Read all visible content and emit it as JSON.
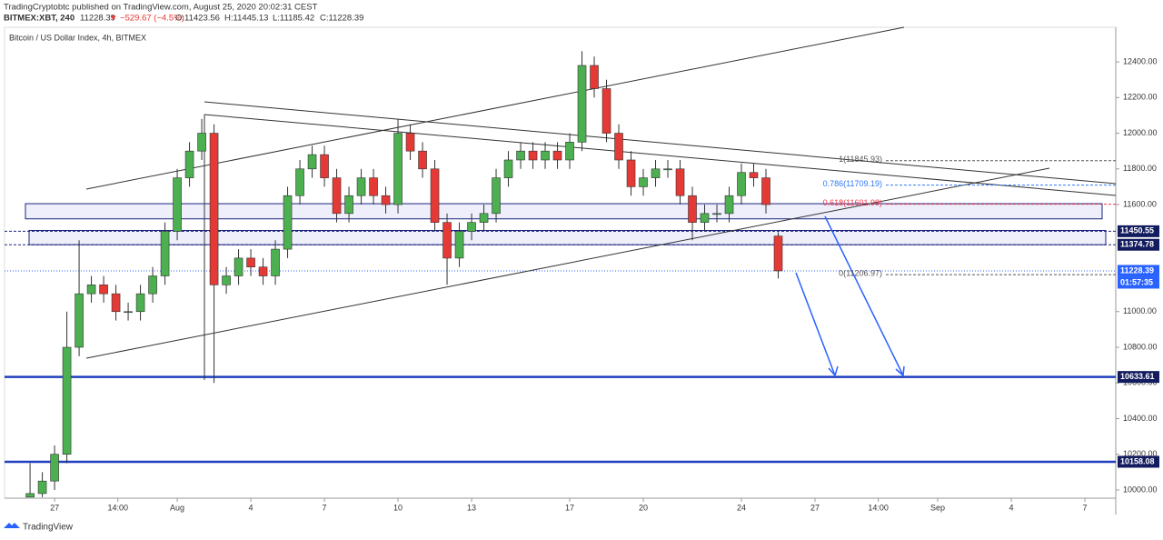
{
  "header": {
    "published": "TradingCryptobtc published on TradingView.com, August 25, 2020 20:02:31 CEST",
    "symbol": "BITMEX:XBT, 240",
    "last": "11228.39",
    "change": "▼ −529.67 (−4.5%)",
    "ohlc": [
      "O:11423.56",
      "H:11445.13",
      "L:11185.42",
      "C:11228.39"
    ]
  },
  "footer": "TradingView",
  "chart_data": {
    "type": "candlestick",
    "title": "Bitcoin / US Dollar Index, 4h, BITMEX",
    "up_color": "#4caf50",
    "down_color": "#e53935",
    "x": [
      -1,
      -0.5,
      0,
      0.5,
      1,
      1.5,
      2,
      2.5,
      3,
      3.5,
      4,
      4.5,
      5,
      5.5,
      6,
      6.5,
      7,
      7.5,
      8,
      8.5,
      9,
      9.5,
      10,
      10.5,
      11,
      11.5,
      12,
      12.5,
      13,
      13.5,
      14,
      14.5,
      15,
      15.5,
      16,
      16.5,
      17,
      17.5,
      18,
      18.5,
      19,
      19.5,
      20,
      20.5,
      21,
      21.5,
      22,
      22.5,
      23,
      23.5,
      24,
      24.5,
      25,
      25.5,
      26,
      26.5,
      27,
      27.5,
      28,
      28.5,
      29,
      29.5
    ],
    "open": [
      9960,
      9980,
      10050,
      10200,
      10800,
      11100,
      11150,
      11100,
      11000,
      11000,
      11100,
      11200,
      11450,
      11750,
      11900,
      12000,
      11150,
      11200,
      11300,
      11250,
      11200,
      11350,
      11650,
      11800,
      11880,
      11750,
      11550,
      11650,
      11750,
      11650,
      11600,
      12000,
      11900,
      11800,
      11500,
      11300,
      11450,
      11500,
      11550,
      11750,
      11850,
      11900,
      11850,
      11900,
      11850,
      11950,
      12380,
      12250,
      12000,
      11850,
      11700,
      11750,
      11800,
      11800,
      11650,
      11500,
      11550,
      11550,
      11650,
      11780,
      11750,
      11423.56
    ],
    "high": [
      10150,
      10100,
      10250,
      11000,
      11400,
      11200,
      11200,
      11150,
      11050,
      11150,
      11250,
      11500,
      11800,
      11950,
      12080,
      12050,
      11250,
      11350,
      11350,
      11300,
      11400,
      11700,
      11850,
      11930,
      11930,
      11800,
      11700,
      11800,
      11800,
      11700,
      12080,
      12050,
      11950,
      11850,
      11550,
      11500,
      11550,
      11600,
      11800,
      11900,
      11950,
      11950,
      11950,
      11950,
      12000,
      12460,
      12430,
      12300,
      12050,
      11900,
      11800,
      11850,
      11850,
      11850,
      11700,
      11600,
      11600,
      11700,
      11830,
      11830,
      11800,
      11445.13
    ],
    "low": [
      9960,
      9960,
      10000,
      10150,
      10750,
      11050,
      11050,
      10950,
      10950,
      10950,
      11050,
      11150,
      11400,
      11700,
      11850,
      10600,
      11100,
      11150,
      11200,
      11150,
      11150,
      11300,
      11600,
      11750,
      11700,
      11500,
      11500,
      11600,
      11600,
      11550,
      11550,
      11850,
      11750,
      11450,
      11150,
      11250,
      11400,
      11450,
      11500,
      11700,
      11800,
      11800,
      11800,
      11800,
      11800,
      11900,
      12200,
      11950,
      11800,
      11650,
      11650,
      11700,
      11750,
      11600,
      11400,
      11450,
      11500,
      11500,
      11600,
      11700,
      11550,
      11185.42
    ],
    "close": [
      9980,
      10050,
      10200,
      10800,
      11100,
      11150,
      11100,
      11000,
      11000,
      11100,
      11200,
      11450,
      11750,
      11900,
      12000,
      11150,
      11200,
      11300,
      11250,
      11200,
      11350,
      11650,
      11800,
      11880,
      11750,
      11550,
      11650,
      11750,
      11650,
      11600,
      12000,
      11900,
      11800,
      11500,
      11300,
      11450,
      11500,
      11550,
      11750,
      11850,
      11900,
      11850,
      11900,
      11850,
      11950,
      12380,
      12250,
      12000,
      11850,
      11700,
      11750,
      11800,
      11800,
      11650,
      11500,
      11550,
      11550,
      11650,
      11780,
      11750,
      11600,
      11228.39
    ],
    "xlim": [
      -2.04,
      43.26
    ],
    "ylim": [
      9954,
      12594
    ],
    "xticks": [
      {
        "value": 0,
        "label": "27"
      },
      {
        "value": 2.58,
        "label": "14:00"
      },
      {
        "value": 5,
        "label": "Aug"
      },
      {
        "value": 8,
        "label": "4"
      },
      {
        "value": 11,
        "label": "7"
      },
      {
        "value": 14,
        "label": "10"
      },
      {
        "value": 17,
        "label": "13"
      },
      {
        "value": 21,
        "label": "17"
      },
      {
        "value": 24,
        "label": "20"
      },
      {
        "value": 28,
        "label": "24"
      },
      {
        "value": 31,
        "label": "27"
      },
      {
        "value": 33.58,
        "label": "14:00"
      },
      {
        "value": 36,
        "label": "Sep"
      },
      {
        "value": 39,
        "label": "4"
      },
      {
        "value": 42,
        "label": "7"
      }
    ],
    "yticks": [
      {
        "value": 10000,
        "label": "10000.00"
      },
      {
        "value": 10200,
        "label": "10200.00"
      },
      {
        "value": 10400,
        "label": "10400.00"
      },
      {
        "value": 10600,
        "label": "10600.00"
      },
      {
        "value": 10800,
        "label": "10800.00"
      },
      {
        "value": 11000,
        "label": "11000.00"
      },
      {
        "value": 11600,
        "label": "11600.00"
      },
      {
        "value": 11800,
        "label": "11800.00"
      },
      {
        "value": 12000,
        "label": "12000.00"
      },
      {
        "value": 12200,
        "label": "12200.00"
      },
      {
        "value": 12400,
        "label": "12400.00"
      }
    ],
    "levels": [
      10633.61,
      10158.08
    ],
    "level_color": "#1f3fbf",
    "price_lines": [
      11450.55,
      11374.78
    ],
    "last_price": 11228.39,
    "countdown": "01:57:35",
    "zones": [
      [
        11520,
        11605
      ],
      [
        11375,
        11455
      ]
    ],
    "fibs": [
      {
        "value": 11845.93,
        "label": "1(11845.93)",
        "color": "#555555"
      },
      {
        "value": 11709.19,
        "label": "0.786(11709.19)",
        "color": "#3179f5"
      },
      {
        "value": 11601.99,
        "label": "0.618(11601.99)",
        "color": "#f23645"
      },
      {
        "value": 11206.97,
        "label": "0(11206.97)",
        "color": "#555555"
      }
    ]
  }
}
